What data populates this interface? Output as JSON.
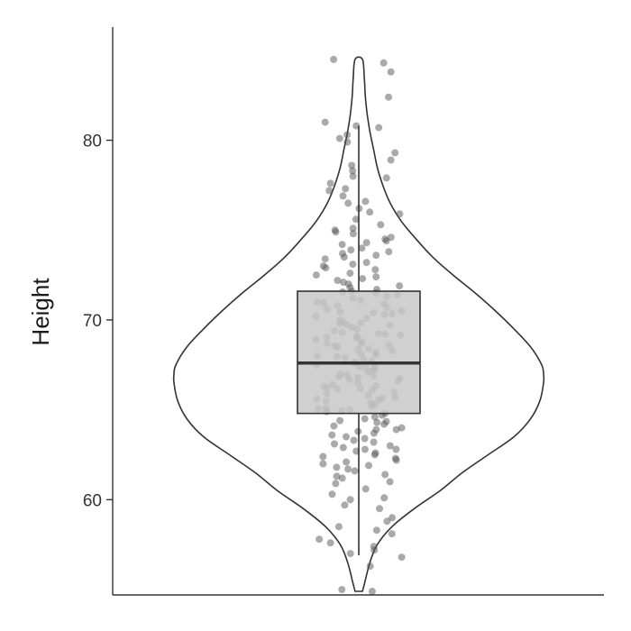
{
  "chart_data": {
    "type": "violin",
    "title": "",
    "xlabel": "",
    "ylabel": "Height",
    "ylim": [
      54.7,
      86.8
    ],
    "yticks": [
      60,
      70,
      80
    ],
    "grid": false,
    "legend": "none",
    "colors": {
      "violin_fill": "#ffffff",
      "violin_stroke": "#333333",
      "box_fill": "#c8c8c8",
      "box_stroke": "#333333",
      "points": "#555555",
      "axis": "#333333"
    },
    "violin": {
      "range": [
        54.9,
        84.5
      ],
      "density": [
        [
          54.9,
          0.02
        ],
        [
          55.5,
          0.035
        ],
        [
          56.5,
          0.06
        ],
        [
          57.5,
          0.1
        ],
        [
          58.5,
          0.18
        ],
        [
          59.5,
          0.3
        ],
        [
          60.5,
          0.44
        ],
        [
          61.5,
          0.56
        ],
        [
          62.5,
          0.7
        ],
        [
          63.5,
          0.84
        ],
        [
          64.5,
          0.93
        ],
        [
          65.5,
          0.98
        ],
        [
          66.5,
          1.0
        ],
        [
          67.0,
          1.0
        ],
        [
          67.5,
          0.99
        ],
        [
          68.5,
          0.93
        ],
        [
          69.5,
          0.84
        ],
        [
          70.5,
          0.74
        ],
        [
          71.5,
          0.63
        ],
        [
          72.5,
          0.51
        ],
        [
          73.5,
          0.4
        ],
        [
          74.5,
          0.31
        ],
        [
          75.5,
          0.23
        ],
        [
          76.5,
          0.17
        ],
        [
          77.5,
          0.13
        ],
        [
          78.5,
          0.1
        ],
        [
          79.5,
          0.08
        ],
        [
          80.5,
          0.06
        ],
        [
          81.5,
          0.045
        ],
        [
          82.5,
          0.035
        ],
        [
          83.5,
          0.03
        ],
        [
          84.5,
          0.02
        ]
      ]
    },
    "box": {
      "whisker_low": 56.9,
      "q1": 64.8,
      "median": 67.6,
      "q3": 71.6,
      "whisker_high": 80.8
    },
    "points": [
      54.9,
      55.0,
      56.3,
      56.8,
      57.2,
      57.4,
      57.6,
      58.1,
      58.3,
      58.8,
      59.5,
      59.7,
      60.1,
      60.3,
      60.6,
      60.9,
      84.5,
      84.3,
      83.8,
      82.4,
      81.0,
      80.8,
      80.7,
      80.3,
      80.1,
      79.9,
      79.3,
      78.9,
      78.6,
      78.3,
      77.9,
      77.6,
      77.2,
      76.9,
      76.5,
      76.2,
      75.9,
      75.6,
      75.3,
      75.0,
      74.8,
      74.6,
      74.4,
      74.2,
      74.0,
      73.8,
      73.6,
      73.4,
      73.2,
      73.0,
      72.8,
      72.6,
      72.4,
      72.2,
      72.0,
      71.8,
      71.6,
      71.4,
      71.2,
      71.0,
      70.8,
      70.6,
      70.4,
      70.2,
      70.0,
      69.8,
      69.6,
      69.4,
      69.2,
      69.0,
      68.8,
      68.6,
      68.4,
      68.2,
      68.0,
      67.8,
      67.6,
      67.4,
      67.2,
      67.0,
      66.8,
      66.6,
      66.4,
      66.2,
      66.0,
      65.8,
      65.6,
      65.4,
      65.2,
      65.0,
      64.8,
      64.6,
      64.4,
      64.2,
      64.0,
      63.8,
      63.6,
      63.4,
      63.2,
      63.0,
      62.8,
      62.6,
      62.4,
      62.2,
      62.0,
      61.8,
      61.6,
      61.4,
      61.2,
      61.0,
      74.9,
      74.5,
      73.9,
      73.1,
      72.5,
      72.1,
      71.7,
      71.3,
      70.9,
      70.5,
      70.1,
      69.7,
      69.3,
      68.9,
      68.5,
      68.1,
      67.7,
      67.3,
      66.9,
      66.5,
      66.1,
      65.7,
      65.3,
      64.9,
      64.5,
      64.1,
      63.7,
      63.3,
      62.9,
      62.5,
      62.1,
      61.7,
      61.3,
      73.5,
      72.9,
      72.3,
      71.9,
      71.5,
      71.1,
      70.7,
      70.3,
      69.9,
      69.5,
      69.1,
      68.7,
      68.3,
      67.9,
      67.5,
      67.1,
      66.7,
      66.3,
      65.9,
      65.5,
      65.1,
      64.7,
      64.3,
      63.9,
      63.5,
      63.1,
      62.7,
      62.3,
      71.55,
      70.95,
      70.35,
      69.75,
      69.15,
      68.55,
      67.95,
      67.35,
      66.75,
      66.15,
      65.55,
      64.95,
      64.35,
      70.45,
      69.85,
      69.25,
      68.65,
      68.05,
      67.45,
      66.85,
      66.25,
      65.65,
      65.05,
      69.05,
      68.35,
      67.65,
      66.95,
      66.35,
      76.0,
      76.6,
      77.3,
      78.0,
      75.1,
      74.3,
      73.7,
      63.9,
      62.8,
      61.9,
      60.0,
      59.0,
      58.5,
      57.8,
      57.0
    ]
  }
}
